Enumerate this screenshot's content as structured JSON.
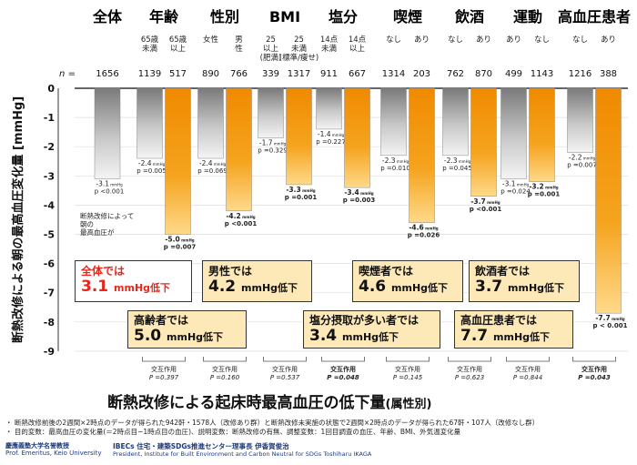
{
  "chart_data": {
    "type": "bar",
    "title": "断熱改修による起床時最高血圧の低下量",
    "title_suffix": "(属性別)",
    "ylabel": "断熱改修による朝の最高血圧変化量 [mmHg]",
    "ylim": [
      -9,
      0
    ],
    "yticks": [
      0,
      -1,
      -2,
      -3,
      -4,
      -5,
      -6,
      -7,
      -8,
      -9
    ],
    "n_prefix": "n =",
    "groups": [
      {
        "header": "全体",
        "subheaders": [],
        "bars": [
          {
            "n": "1656",
            "value": -3.1,
            "color": "gray",
            "label": "-3.1",
            "unit": "mmHg",
            "p": "p <0.001"
          }
        ],
        "interaction": null
      },
      {
        "header": "年齢",
        "subheaders": [
          "65歳\n未満",
          "65歳\n以上"
        ],
        "bars": [
          {
            "n": "1139",
            "value": -2.4,
            "color": "gray",
            "label": "-2.4",
            "unit": "mmHg",
            "p": "p =0.005"
          },
          {
            "n": "517",
            "value": -5.0,
            "color": "orange",
            "label": "-5.0",
            "unit": "mmHg",
            "p": "p =0.007"
          }
        ],
        "interaction": {
          "label": "交互作用",
          "p": "P =0.397",
          "bold": false
        }
      },
      {
        "header": "性別",
        "subheaders": [
          "女性",
          "男\n性"
        ],
        "bars": [
          {
            "n": "890",
            "value": -2.4,
            "color": "gray",
            "label": "-2.4",
            "unit": "mmHg",
            "p": "p =0.069"
          },
          {
            "n": "766",
            "value": -4.2,
            "color": "orange",
            "label": "-4.2",
            "unit": "mmHg",
            "p": "p <0.001"
          }
        ],
        "interaction": {
          "label": "交互作用",
          "p": "P =0.160",
          "bold": false
        }
      },
      {
        "header": "BMI",
        "subheaders": [
          "25\n以上\n(肥満)",
          "25\n未満\n(標準/痩せ)"
        ],
        "bars": [
          {
            "n": "339",
            "value": -1.7,
            "color": "gray",
            "label": "-1.7",
            "unit": "mmHg",
            "p": "p =0.329"
          },
          {
            "n": "1317",
            "value": -3.3,
            "color": "orange",
            "label": "-3.3",
            "unit": "mmHg",
            "p": "p =0.001"
          }
        ],
        "interaction": {
          "label": "交互作用",
          "p": "P =0.537",
          "bold": false
        }
      },
      {
        "header": "塩分",
        "subheaders": [
          "14点\n未満",
          "14点\n以上"
        ],
        "bars": [
          {
            "n": "911",
            "value": -1.4,
            "color": "gray",
            "label": "-1.4",
            "unit": "mmHg",
            "p": "p =0.227"
          },
          {
            "n": "667",
            "value": -3.4,
            "color": "orange",
            "label": "-3.4",
            "unit": "mmHg",
            "p": "p =0.003"
          }
        ],
        "interaction": {
          "label": "交互作用",
          "p": "P =0.048",
          "bold": true
        }
      },
      {
        "header": "喫煙",
        "subheaders": [
          "なし",
          "あり"
        ],
        "bars": [
          {
            "n": "1314",
            "value": -2.3,
            "color": "gray",
            "label": "-2.3",
            "unit": "mmHg",
            "p": "p =0.010"
          },
          {
            "n": "203",
            "value": -4.6,
            "color": "orange",
            "label": "-4.6",
            "unit": "mmHg",
            "p": "p =0.026"
          }
        ],
        "interaction": {
          "label": "交互作用",
          "p": "P =0.145",
          "bold": false
        }
      },
      {
        "header": "飲酒",
        "subheaders": [
          "なし",
          "あり"
        ],
        "bars": [
          {
            "n": "762",
            "value": -2.3,
            "color": "gray",
            "label": "-2.3",
            "unit": "mmHg",
            "p": "p =0.045"
          },
          {
            "n": "870",
            "value": -3.7,
            "color": "orange",
            "label": "-3.7",
            "unit": "mmHg",
            "p": "p <0.001"
          }
        ],
        "interaction": {
          "label": "交互作用",
          "p": "P =0.623",
          "bold": false
        }
      },
      {
        "header": "運動",
        "subheaders": [
          "あり",
          "なし"
        ],
        "bars": [
          {
            "n": "499",
            "value": -3.1,
            "color": "gray",
            "label": "-3.1",
            "unit": "mmHg",
            "p": "p =0.024"
          },
          {
            "n": "1143",
            "value": -3.2,
            "color": "orange",
            "label": "-3.2",
            "unit": "mmHg",
            "p": "p =0.001"
          }
        ],
        "interaction": {
          "label": "交互作用",
          "p": "P =0.844",
          "bold": false
        }
      },
      {
        "header": "高血圧患者",
        "subheaders": [
          "なし",
          "あり"
        ],
        "bars": [
          {
            "n": "1216",
            "value": -2.2,
            "color": "gray",
            "label": "-2.2",
            "unit": "mmHg",
            "p": "p =0.007"
          },
          {
            "n": "388",
            "value": -7.7,
            "color": "orange",
            "label": "-7.7",
            "unit": "mmHg",
            "p": "p < 0.001"
          }
        ],
        "interaction": {
          "label": "交互作用",
          "p": "P =0.043",
          "bold": true
        }
      }
    ],
    "annotation": "断熱改修によって\n朝の\n最高血圧が"
  },
  "callouts": [
    {
      "id": "overall",
      "line1": "全体では",
      "line2": "3.1",
      "unit": "mmHg低下"
    },
    {
      "id": "elderly",
      "line1": "高齢者では",
      "line2": "5.0",
      "unit": "mmHg低下"
    },
    {
      "id": "male",
      "line1": "男性では",
      "line2": "4.2",
      "unit": "mmHg低下"
    },
    {
      "id": "salt",
      "line1": "塩分摂取が多い者では",
      "line2": "3.4",
      "unit": "mmHg低下"
    },
    {
      "id": "smoker",
      "line1": "喫煙者では",
      "line2": "4.6",
      "unit": "mmHg低下"
    },
    {
      "id": "drinker",
      "line1": "飲酒者では",
      "line2": "3.7",
      "unit": "mmHg低下"
    },
    {
      "id": "hypertension",
      "line1": "高血圧患者では",
      "line2": "7.7",
      "unit": "mmHg低下"
    }
  ],
  "footnotes": [
    "・ 断熱改修前後の2週間×2時点のデータが得られた942軒・1578人（改修あり群）と断熱改修未実施の状態で2週間×2時点のデータが得られた67軒・107人（改修なし群）",
    "・ 目的変数：最高血圧の変化量(＝2時点目−1時点目の血圧)、説明変数：断熱改修の有無、調整変数：1回目調査の血圧、年齢、BMI、外気温変化量"
  ],
  "logos": {
    "left_line1": "慶應義塾大学名誉教授",
    "left_line2": "Prof. Emeritus, Keio University",
    "right_line1": "IBECs 住宅・建築SDGs推進センター理事長 伊香賀俊治",
    "right_line2": "President, Institute for Built Environment and Carbon Neutral for SDGs  Toshiharu IKAGA"
  },
  "colors": {
    "orange": "#f5a41f",
    "gray": "#a6a6a6",
    "red": "#e8261b",
    "callout_bg": "#fde8b7"
  }
}
